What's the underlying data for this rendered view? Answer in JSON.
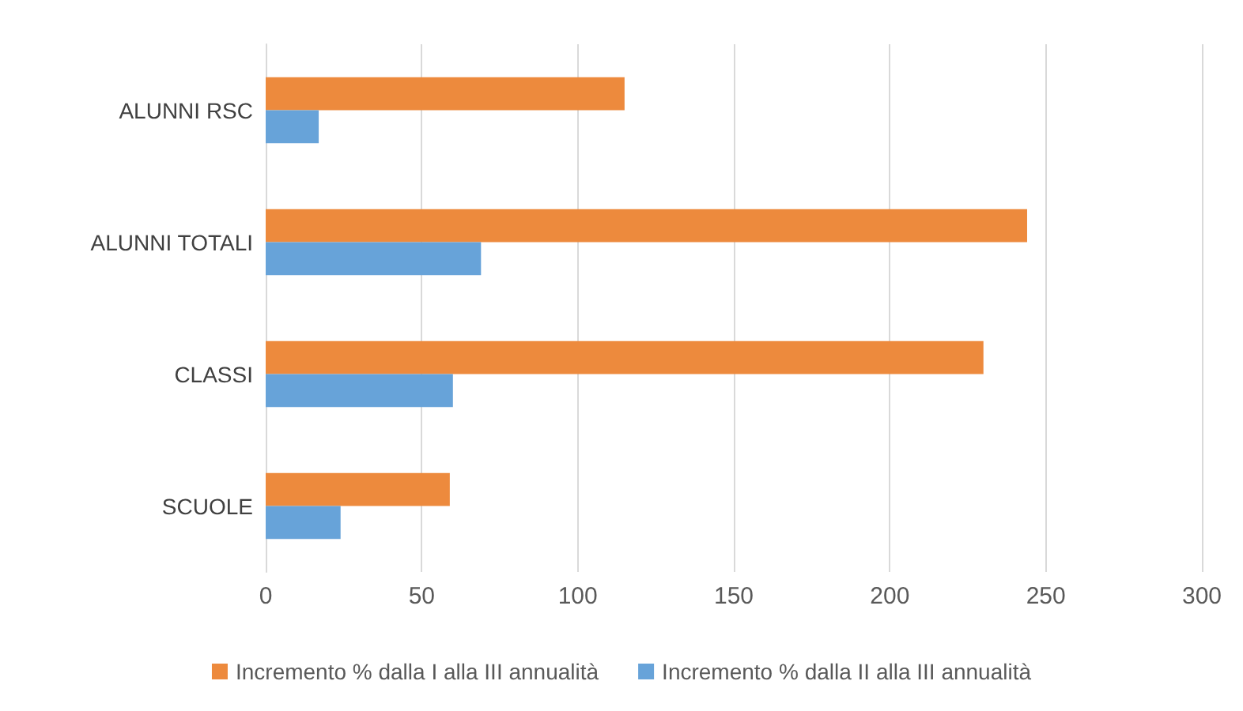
{
  "chart_data": {
    "type": "bar",
    "orientation": "horizontal",
    "categories": [
      "ALUNNI RSC",
      "ALUNNI TOTALI",
      "CLASSI",
      "SCUOLE"
    ],
    "series": [
      {
        "name": "Incremento % dalla I alla III annualità",
        "color": "#ed8a3d",
        "values": [
          115,
          244,
          230,
          59
        ]
      },
      {
        "name": "Incremento % dalla II alla III annualità",
        "color": "#67a3d9",
        "values": [
          17,
          69,
          60,
          24
        ]
      }
    ],
    "xlim": [
      0,
      300
    ],
    "xticks": [
      0,
      50,
      100,
      150,
      200,
      250,
      300
    ],
    "grid": "x",
    "legend": "bottom"
  }
}
